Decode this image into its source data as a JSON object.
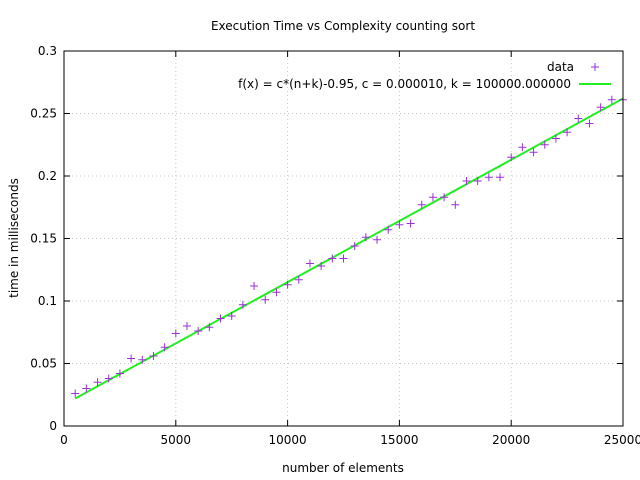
{
  "chart_data": {
    "type": "scatter",
    "title": "Execution Time vs Complexity counting sort",
    "xlabel": "number of elements",
    "ylabel": "time in milliseconds",
    "xlim": [
      0,
      25000
    ],
    "ylim": [
      0,
      0.3
    ],
    "xticks": [
      0,
      5000,
      10000,
      15000,
      20000,
      25000
    ],
    "xtick_labels": [
      "0",
      "5000",
      "10000",
      "15000",
      "20000",
      "25000"
    ],
    "yticks": [
      0,
      0.05,
      0.1,
      0.15,
      0.2,
      0.25,
      0.3
    ],
    "ytick_labels": [
      "0",
      "0.05",
      "0.1",
      "0.15",
      "0.2",
      "0.25",
      "0.3"
    ],
    "grid": true,
    "legend_position": "top-right",
    "series": [
      {
        "name": "data",
        "kind": "points",
        "marker": "+",
        "color": "#9b30d9",
        "points": [
          [
            500,
            0.026
          ],
          [
            1000,
            0.03
          ],
          [
            1500,
            0.035
          ],
          [
            2000,
            0.038
          ],
          [
            2500,
            0.042
          ],
          [
            3000,
            0.054
          ],
          [
            3500,
            0.053
          ],
          [
            4000,
            0.056
          ],
          [
            4500,
            0.063
          ],
          [
            5000,
            0.074
          ],
          [
            5500,
            0.08
          ],
          [
            6000,
            0.076
          ],
          [
            6500,
            0.079
          ],
          [
            7000,
            0.086
          ],
          [
            7500,
            0.088
          ],
          [
            8000,
            0.097
          ],
          [
            8500,
            0.112
          ],
          [
            9000,
            0.101
          ],
          [
            9500,
            0.107
          ],
          [
            10000,
            0.113
          ],
          [
            10500,
            0.117
          ],
          [
            11000,
            0.13
          ],
          [
            11500,
            0.128
          ],
          [
            12000,
            0.134
          ],
          [
            12500,
            0.134
          ],
          [
            13000,
            0.144
          ],
          [
            13500,
            0.151
          ],
          [
            14000,
            0.149
          ],
          [
            14500,
            0.157
          ],
          [
            15000,
            0.161
          ],
          [
            15500,
            0.162
          ],
          [
            16000,
            0.177
          ],
          [
            16500,
            0.183
          ],
          [
            17000,
            0.183
          ],
          [
            17500,
            0.177
          ],
          [
            18000,
            0.196
          ],
          [
            18500,
            0.196
          ],
          [
            19000,
            0.199
          ],
          [
            19500,
            0.199
          ],
          [
            20000,
            0.215
          ],
          [
            20500,
            0.223
          ],
          [
            21000,
            0.219
          ],
          [
            21500,
            0.225
          ],
          [
            22000,
            0.23
          ],
          [
            22500,
            0.235
          ],
          [
            23000,
            0.246
          ],
          [
            23500,
            0.242
          ],
          [
            24000,
            0.255
          ],
          [
            24500,
            0.261
          ],
          [
            25000,
            0.261
          ]
        ]
      },
      {
        "name": "f(x) = c*(n+k)-0.95, c = 0.000010, k = 100000.000000",
        "kind": "line",
        "color": "#22ee22",
        "x": [
          500,
          25000
        ],
        "y": [
          0.022,
          0.262
        ]
      }
    ]
  }
}
